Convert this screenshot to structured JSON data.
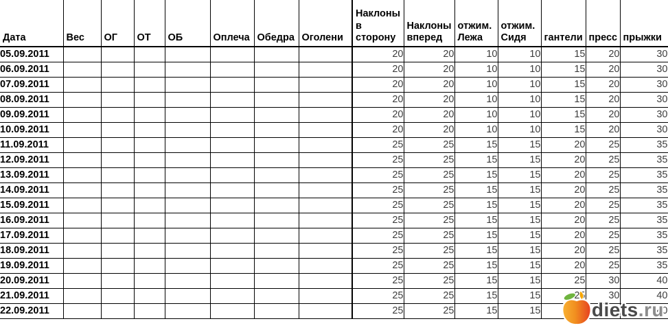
{
  "table": {
    "columns": [
      "Дата",
      "Вес",
      "ОГ",
      "ОТ",
      "ОБ",
      "Оплеча",
      "Обедра",
      "Оголени",
      "Наклоны в сторону",
      "Наклоны вперед",
      "отжим. Лежа",
      "отжим. Сидя",
      "гантели",
      "пресс",
      "прыжки"
    ],
    "rows": [
      [
        "05.09.2011",
        "",
        "",
        "",
        "",
        "",
        "",
        "",
        "20",
        "20",
        "10",
        "10",
        "15",
        "20",
        "30"
      ],
      [
        "06.09.2011",
        "",
        "",
        "",
        "",
        "",
        "",
        "",
        "20",
        "20",
        "10",
        "10",
        "15",
        "20",
        "30"
      ],
      [
        "07.09.2011",
        "",
        "",
        "",
        "",
        "",
        "",
        "",
        "20",
        "20",
        "10",
        "10",
        "15",
        "20",
        "30"
      ],
      [
        "08.09.2011",
        "",
        "",
        "",
        "",
        "",
        "",
        "",
        "20",
        "20",
        "10",
        "10",
        "15",
        "20",
        "30"
      ],
      [
        "09.09.2011",
        "",
        "",
        "",
        "",
        "",
        "",
        "",
        "20",
        "20",
        "10",
        "10",
        "15",
        "20",
        "30"
      ],
      [
        "10.09.2011",
        "",
        "",
        "",
        "",
        "",
        "",
        "",
        "20",
        "20",
        "10",
        "10",
        "15",
        "20",
        "30"
      ],
      [
        "11.09.2011",
        "",
        "",
        "",
        "",
        "",
        "",
        "",
        "25",
        "25",
        "15",
        "15",
        "20",
        "25",
        "35"
      ],
      [
        "12.09.2011",
        "",
        "",
        "",
        "",
        "",
        "",
        "",
        "25",
        "25",
        "15",
        "15",
        "20",
        "25",
        "35"
      ],
      [
        "13.09.2011",
        "",
        "",
        "",
        "",
        "",
        "",
        "",
        "25",
        "25",
        "15",
        "15",
        "20",
        "25",
        "35"
      ],
      [
        "14.09.2011",
        "",
        "",
        "",
        "",
        "",
        "",
        "",
        "25",
        "25",
        "15",
        "15",
        "20",
        "25",
        "35"
      ],
      [
        "15.09.2011",
        "",
        "",
        "",
        "",
        "",
        "",
        "",
        "25",
        "25",
        "15",
        "15",
        "20",
        "25",
        "35"
      ],
      [
        "16.09.2011",
        "",
        "",
        "",
        "",
        "",
        "",
        "",
        "25",
        "25",
        "15",
        "15",
        "20",
        "25",
        "35"
      ],
      [
        "17.09.2011",
        "",
        "",
        "",
        "",
        "",
        "",
        "",
        "25",
        "25",
        "15",
        "15",
        "20",
        "25",
        "35"
      ],
      [
        "18.09.2011",
        "",
        "",
        "",
        "",
        "",
        "",
        "",
        "25",
        "25",
        "15",
        "15",
        "20",
        "25",
        "35"
      ],
      [
        "19.09.2011",
        "",
        "",
        "",
        "",
        "",
        "",
        "",
        "25",
        "25",
        "15",
        "15",
        "20",
        "25",
        "35"
      ],
      [
        "20.09.2011",
        "",
        "",
        "",
        "",
        "",
        "",
        "",
        "25",
        "25",
        "15",
        "15",
        "25",
        "30",
        "40"
      ],
      [
        "21.09.2011",
        "",
        "",
        "",
        "",
        "",
        "",
        "",
        "25",
        "25",
        "15",
        "15",
        "25",
        "30",
        "40"
      ],
      [
        "22.09.2011",
        "",
        "",
        "",
        "",
        "",
        "",
        "",
        "25",
        "25",
        "15",
        "15",
        "25",
        "30",
        "40"
      ]
    ]
  },
  "watermark": {
    "name": "diets",
    "tld": ".ru"
  },
  "colors": {
    "border": "#000000",
    "value_text": "#3d3d3d",
    "header_text": "#000000",
    "watermark_name": "#4a4a4a",
    "watermark_tld": "#8c8c8c",
    "apple_yellow": "#f9b233",
    "apple_red": "#e63f20",
    "leaf_green": "#6fb43f",
    "flame_orange": "#f7a600"
  }
}
